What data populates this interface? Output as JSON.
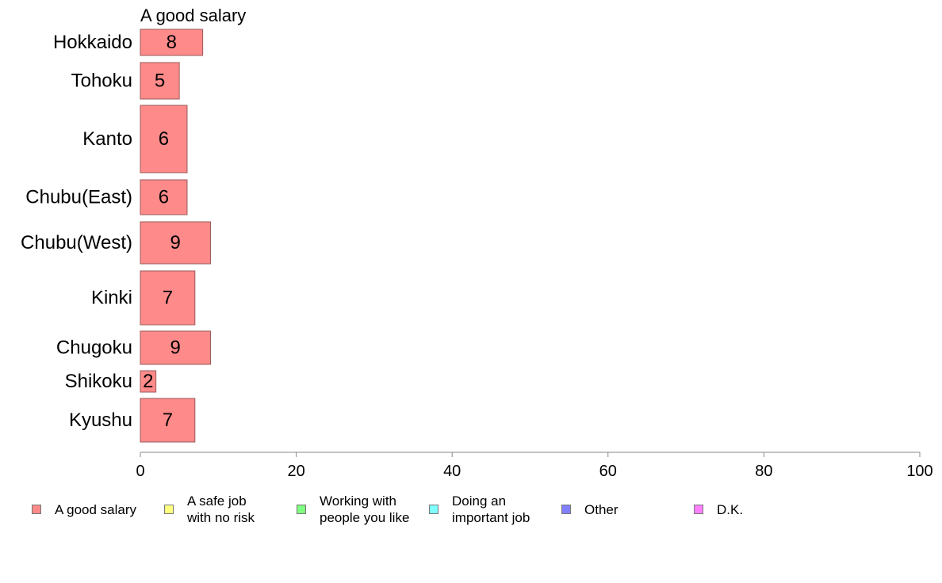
{
  "chart_data": {
    "type": "bar",
    "orientation": "horizontal",
    "title": "A good salary",
    "categories": [
      "Hokkaido",
      "Tohoku",
      "Kanto",
      "Chubu(East)",
      "Chubu(West)",
      "Kinki",
      "Chugoku",
      "Shikoku",
      "Kyushu"
    ],
    "series": [
      {
        "name": "A good salary",
        "values": [
          8,
          5,
          6,
          6,
          9,
          7,
          9,
          2,
          7
        ],
        "color": "#ff8a8a"
      }
    ],
    "xlim": [
      0,
      100
    ],
    "xticks": [
      0,
      20,
      40,
      60,
      80,
      100
    ],
    "grid": false,
    "legend_position": "bottom",
    "legend": [
      {
        "label": "A good salary",
        "color": "#ff8a8a"
      },
      {
        "label": "A safe job\nwith no risk",
        "color": "#ffff80"
      },
      {
        "label": "Working with\npeople you like",
        "color": "#80ff80"
      },
      {
        "label": "Doing an\nimportant job",
        "color": "#80ffff"
      },
      {
        "label": "Other",
        "color": "#8080ff"
      },
      {
        "label": "D.K.",
        "color": "#ff80ff"
      }
    ]
  }
}
